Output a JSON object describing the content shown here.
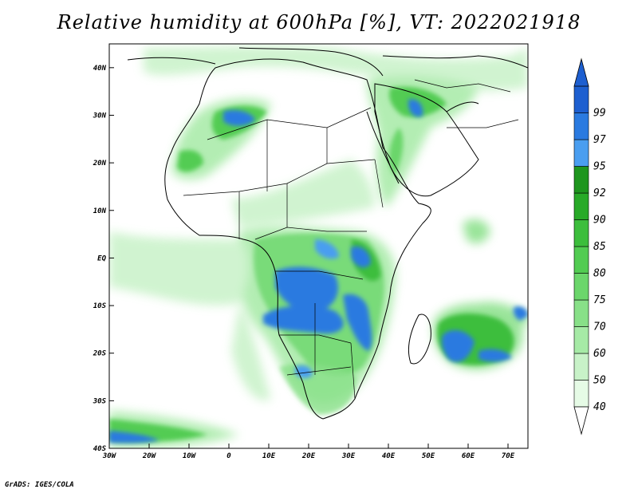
{
  "title": "Relative humidity at 600hPa [%], VT: 2022021918",
  "footer": "GrADS: IGES/COLA",
  "map": {
    "lon_range": [
      -30,
      75
    ],
    "lat_range": [
      -40,
      45
    ],
    "lon_ticks": [
      {
        "value": -30,
        "label": "30W"
      },
      {
        "value": -20,
        "label": "20W"
      },
      {
        "value": -10,
        "label": "10W"
      },
      {
        "value": 0,
        "label": "0"
      },
      {
        "value": 10,
        "label": "10E"
      },
      {
        "value": 20,
        "label": "20E"
      },
      {
        "value": 30,
        "label": "30E"
      },
      {
        "value": 40,
        "label": "40E"
      },
      {
        "value": 50,
        "label": "50E"
      },
      {
        "value": 60,
        "label": "60E"
      },
      {
        "value": 70,
        "label": "70E"
      }
    ],
    "lat_ticks": [
      {
        "value": 40,
        "label": "40N"
      },
      {
        "value": 30,
        "label": "30N"
      },
      {
        "value": 20,
        "label": "20N"
      },
      {
        "value": 10,
        "label": "10N"
      },
      {
        "value": 0,
        "label": "EQ"
      },
      {
        "value": -10,
        "label": "10S"
      },
      {
        "value": -20,
        "label": "20S"
      },
      {
        "value": -30,
        "label": "30S"
      },
      {
        "value": -40,
        "label": "40S"
      }
    ]
  },
  "colorbar": {
    "levels": [
      {
        "value": "40",
        "color": "#e6fbe6"
      },
      {
        "value": "50",
        "color": "#c8f2c8"
      },
      {
        "value": "60",
        "color": "#a6eaa6"
      },
      {
        "value": "70",
        "color": "#88e088"
      },
      {
        "value": "75",
        "color": "#6bd66b"
      },
      {
        "value": "80",
        "color": "#52cc52"
      },
      {
        "value": "85",
        "color": "#3cbe3c"
      },
      {
        "value": "90",
        "color": "#28aa28"
      },
      {
        "value": "92",
        "color": "#1e961e"
      },
      {
        "value": "95",
        "color": "#4a9ef0"
      },
      {
        "value": "97",
        "color": "#2a7ae0"
      },
      {
        "value": "99",
        "color": "#1d5fd0"
      }
    ]
  }
}
